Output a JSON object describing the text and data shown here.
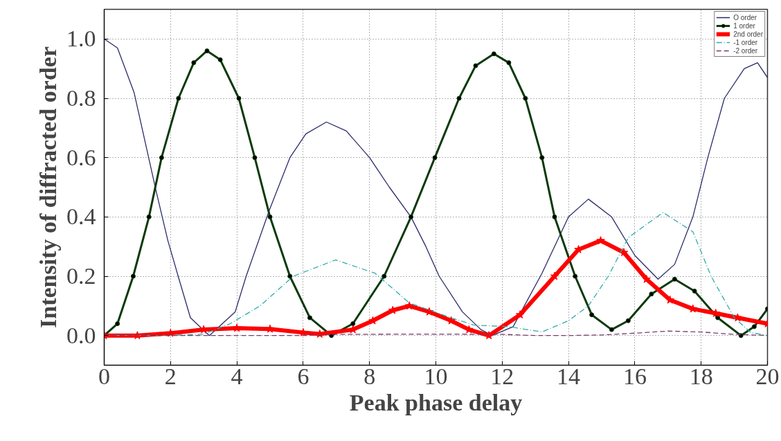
{
  "chart_data": {
    "type": "line",
    "xlabel": "Peak phase delay",
    "ylabel": "Intensity of diffracted order",
    "xlim": [
      0,
      20
    ],
    "ylim": [
      -0.1,
      1.1
    ],
    "xticks": [
      0,
      2,
      4,
      6,
      8,
      10,
      12,
      14,
      16,
      18,
      20
    ],
    "yticks": [
      {
        "value": 0,
        "label": "0.0"
      },
      {
        "value": 0.2,
        "label": "0.2"
      },
      {
        "value": 0.4,
        "label": "0.4"
      },
      {
        "value": 0.6,
        "label": "0.6"
      },
      {
        "value": 0.8,
        "label": "0.8"
      },
      {
        "value": 1.0,
        "label": "1.0"
      }
    ],
    "grid": true,
    "legend": "top right",
    "series": [
      {
        "name": "O order",
        "color": "#2b2b6b",
        "line_style": "solid",
        "x": [
          0,
          0.4,
          0.9,
          1.56,
          1.92,
          2.23,
          2.6,
          3.17,
          3.95,
          4.28,
          4.97,
          5.6,
          6.08,
          6.7,
          7.3,
          8,
          8.6,
          9.25,
          9.7,
          10.1,
          10.8,
          11.36,
          11.7,
          12.33,
          13.2,
          14,
          14.6,
          15.3,
          16,
          16.7,
          17.2,
          17.75,
          18.2,
          18.7,
          19.3,
          19.7,
          20
        ],
        "values": [
          1.0,
          0.97,
          0.82,
          0.49,
          0.32,
          0.2,
          0.06,
          0,
          0.08,
          0.2,
          0.42,
          0.6,
          0.68,
          0.72,
          0.69,
          0.6,
          0.5,
          0.4,
          0.3,
          0.2,
          0.08,
          0.02,
          0,
          0.03,
          0.21,
          0.4,
          0.46,
          0.4,
          0.27,
          0.19,
          0.24,
          0.4,
          0.6,
          0.8,
          0.9,
          0.92,
          0.87
        ]
      },
      {
        "name": "1 order",
        "color": "#0a3a0a",
        "marker": "circle",
        "x": [
          0,
          0.4,
          0.875,
          1.35,
          1.73,
          2.24,
          2.7,
          3.1,
          3.5,
          4.06,
          4.54,
          5.0,
          5.6,
          6.2,
          6.85,
          7.5,
          8.44,
          9.25,
          9.97,
          10.7,
          11.2,
          11.75,
          12.2,
          12.7,
          13.2,
          13.58,
          14.2,
          14.7,
          15.3,
          15.8,
          16.5,
          17.2,
          17.8,
          18.5,
          19.2,
          19.6,
          20
        ],
        "values": [
          0,
          0.04,
          0.2,
          0.4,
          0.6,
          0.8,
          0.92,
          0.96,
          0.93,
          0.8,
          0.6,
          0.4,
          0.2,
          0.06,
          0,
          0.04,
          0.2,
          0.4,
          0.6,
          0.8,
          0.91,
          0.95,
          0.92,
          0.8,
          0.6,
          0.4,
          0.2,
          0.07,
          0.02,
          0.05,
          0.14,
          0.19,
          0.15,
          0.06,
          0,
          0.03,
          0.09
        ]
      },
      {
        "name": "2nd order",
        "color": "#ff0000",
        "marker": "star",
        "x": [
          0,
          1,
          2,
          3,
          4,
          5,
          6,
          6.5,
          7.5,
          8.1,
          8.7,
          9.2,
          9.8,
          10.46,
          11,
          11.6,
          12.54,
          13.58,
          14.3,
          14.97,
          15.67,
          16.35,
          17.06,
          17.75,
          18.44,
          19.1,
          20
        ],
        "values": [
          0,
          0,
          0.008,
          0.02,
          0.025,
          0.022,
          0.01,
          0.005,
          0.02,
          0.05,
          0.085,
          0.1,
          0.08,
          0.05,
          0.02,
          0,
          0.07,
          0.2,
          0.29,
          0.32,
          0.28,
          0.19,
          0.12,
          0.09,
          0.075,
          0.06,
          0.04
        ]
      },
      {
        "name": "-1 order",
        "color": "#33aaaa",
        "line_style": "dashdot",
        "x": [
          0,
          2,
          3,
          3.8,
          4.7,
          5.7,
          6.98,
          8.17,
          9.2,
          10.46,
          11.15,
          12.2,
          13.2,
          14,
          14.6,
          15.2,
          15.8,
          16.85,
          17.75,
          18.3,
          19,
          19.5,
          20
        ],
        "values": [
          0,
          0,
          0.005,
          0.04,
          0.1,
          0.2,
          0.255,
          0.21,
          0.11,
          0.06,
          0.035,
          0.03,
          0.012,
          0.05,
          0.1,
          0.2,
          0.33,
          0.415,
          0.35,
          0.2,
          0.06,
          0.01,
          0
        ]
      },
      {
        "name": "-2 order",
        "color": "#7a3a6a",
        "line_style": "dashed",
        "x": [
          0,
          4,
          6,
          7,
          10,
          12,
          13,
          14,
          15,
          16,
          17,
          18,
          19,
          20
        ],
        "values": [
          0,
          0,
          0,
          0.004,
          0.005,
          0.004,
          0,
          0,
          0.002,
          0.008,
          0.015,
          0.012,
          0.004,
          0
        ]
      }
    ]
  }
}
